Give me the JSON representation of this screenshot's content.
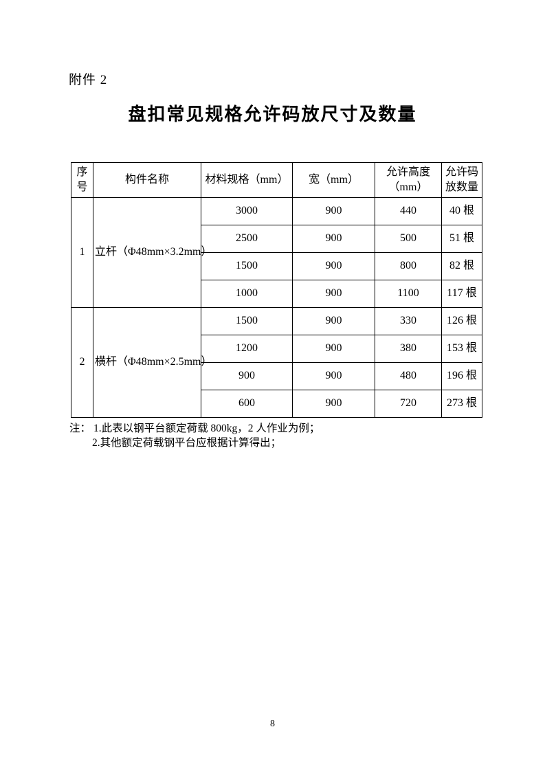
{
  "page": {
    "attachment_label": "附件 2",
    "title": "盘扣常见规格允许码放尺寸及数量",
    "page_number": "8"
  },
  "table": {
    "headers": [
      "序号",
      "构件名称",
      "材料规格（mm）",
      "宽（mm）",
      "允许高度 （mm）",
      "允许码 放数量"
    ],
    "groups": [
      {
        "index": "1",
        "component": "立杆（Φ48mm×3.2mm）",
        "rows": [
          {
            "spec": "3000",
            "width": "900",
            "height": "440",
            "quantity": "40 根"
          },
          {
            "spec": "2500",
            "width": "900",
            "height": "500",
            "quantity": "51 根"
          },
          {
            "spec": "1500",
            "width": "900",
            "height": "800",
            "quantity": "82 根"
          },
          {
            "spec": "1000",
            "width": "900",
            "height": "1100",
            "quantity": "117 根"
          }
        ]
      },
      {
        "index": "2",
        "component": "横杆（Φ48mm×2.5mm）",
        "rows": [
          {
            "spec": "1500",
            "width": "900",
            "height": "330",
            "quantity": "126 根"
          },
          {
            "spec": "1200",
            "width": "900",
            "height": "380",
            "quantity": "153 根"
          },
          {
            "spec": "900",
            "width": "900",
            "height": "480",
            "quantity": "196 根"
          },
          {
            "spec": "600",
            "width": "900",
            "height": "720",
            "quantity": "273 根"
          }
        ]
      }
    ]
  },
  "notes": {
    "label": "注：",
    "items": [
      "1.此表以钢平台额定荷载 800kg，2 人作业为例；",
      "2.其他额定荷载钢平台应根据计算得出；"
    ]
  }
}
